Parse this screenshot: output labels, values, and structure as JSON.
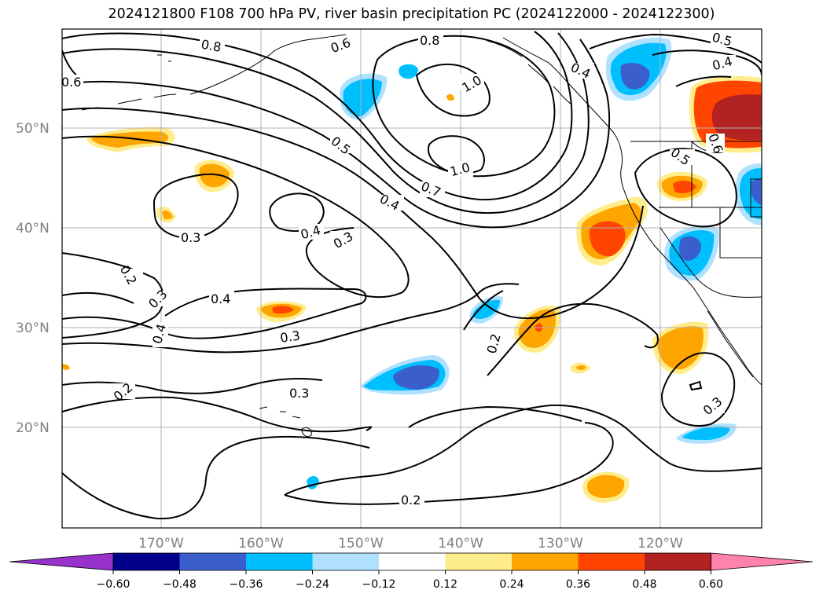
{
  "title": "2024121800 F108 700 hPa PV, river basin precipitation PC (2024122000 - 2024122300)",
  "lat_labels": [
    "50°N",
    "40°N",
    "30°N",
    "20°N"
  ],
  "lon_labels": [
    "170°W",
    "160°W",
    "150°W",
    "140°W",
    "130°W",
    "120°W"
  ],
  "colorbar": {
    "ticks": [
      "−0.60",
      "−0.48",
      "−0.36",
      "−0.24",
      "−0.12",
      "0.12",
      "0.24",
      "0.36",
      "0.48",
      "0.60"
    ],
    "colors": [
      "#9932cc",
      "#00008b",
      "#3a5fcd",
      "#00bfff",
      "#b0e2ff",
      "#ffffff",
      "#ffec8b",
      "#ffa500",
      "#ff4500",
      "#b22222",
      "#ff82ab"
    ]
  },
  "contour_labels": [
    "0.8",
    "0.6",
    "0.8",
    "1.0",
    "1.0",
    "0.4",
    "0.5",
    "0.4",
    "0.6",
    "0.5",
    "0.7",
    "0.4",
    "0.4",
    "0.3",
    "0.3",
    "0.2",
    "0.3",
    "0.4",
    "0.4",
    "0.3",
    "0.2",
    "0.3",
    "0.2",
    "0.3",
    "0.2",
    "0.5",
    "0.6"
  ]
}
